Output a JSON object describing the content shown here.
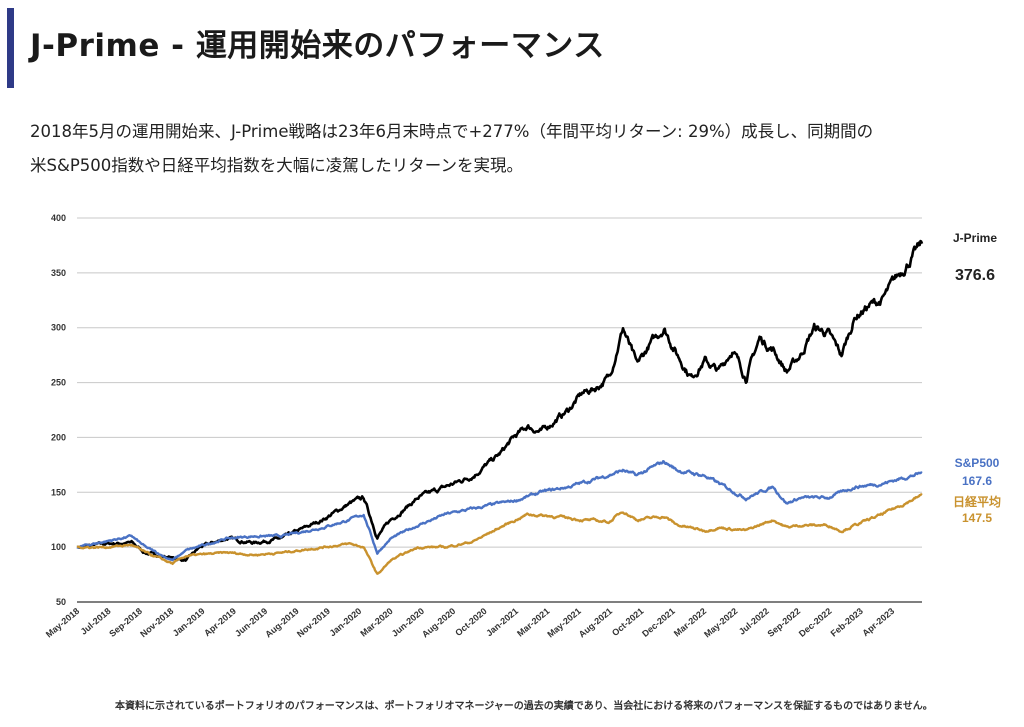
{
  "header": {
    "title": "J-Prime - 運用開始来のパフォーマンス",
    "accent_color": "#2e3a87",
    "subtitle_line1": "2018年5月の運用開始来、J-Prime戦略は23年6月末時点で+277%（年間平均リターン: 29%）成長し、同期間の",
    "subtitle_line2": "米S&P500指数や日経平均指数を大幅に凌駕したリターンを実現。"
  },
  "footer": {
    "disclaimer": "本資料に示されているポートフォリオのパフォーマンスは、ポートフォリオマネージャーの過去の実績であり、当会社における将来のパフォーマンスを保証するものではありません。"
  },
  "chart_data": {
    "type": "line",
    "title": "",
    "xlabel": "",
    "ylabel": "",
    "ylim": [
      50,
      400
    ],
    "yticks": [
      50,
      100,
      150,
      200,
      250,
      300,
      350,
      400
    ],
    "grid": "horizontal",
    "xtick_labels": [
      "May-2018",
      "Jul-2018",
      "Sep-2018",
      "Nov-2018",
      "Jan-2019",
      "Apr-2019",
      "Jun-2019",
      "Aug-2019",
      "Nov-2019",
      "Jan-2020",
      "Mar-2020",
      "Jun-2020",
      "Aug-2020",
      "Oct-2020",
      "Jan-2021",
      "Mar-2021",
      "May-2021",
      "Aug-2021",
      "Oct-2021",
      "Dec-2021",
      "Mar-2022",
      "May-2022",
      "Jul-2022",
      "Sep-2022",
      "Dec-2022",
      "Feb-2023",
      "Apr-2023"
    ],
    "legend_placement": "right (end-of-line labels)",
    "series": [
      {
        "name": "J-Prime",
        "end_value": "376.6",
        "color": "#000000",
        "points": [
          [
            "2018-05",
            100
          ],
          [
            "2018-07",
            103
          ],
          [
            "2018-09",
            104
          ],
          [
            "2018-10",
            95
          ],
          [
            "2018-12",
            90
          ],
          [
            "2019-01",
            88
          ],
          [
            "2019-02",
            100
          ],
          [
            "2019-04",
            108
          ],
          [
            "2019-06",
            104
          ],
          [
            "2019-08",
            108
          ],
          [
            "2019-11",
            125
          ],
          [
            "2020-01",
            140
          ],
          [
            "2020-02",
            145
          ],
          [
            "2020-03",
            110
          ],
          [
            "2020-04",
            125
          ],
          [
            "2020-06",
            145
          ],
          [
            "2020-08",
            155
          ],
          [
            "2020-10",
            165
          ],
          [
            "2020-12",
            185
          ],
          [
            "2021-01",
            200
          ],
          [
            "2021-02",
            210
          ],
          [
            "2021-03",
            205
          ],
          [
            "2021-04",
            215
          ],
          [
            "2021-05",
            225
          ],
          [
            "2021-06",
            240
          ],
          [
            "2021-07",
            245
          ],
          [
            "2021-08",
            255
          ],
          [
            "2021-09",
            300
          ],
          [
            "2021-10",
            265
          ],
          [
            "2021-11",
            285
          ],
          [
            "2021-12",
            300
          ],
          [
            "2022-01",
            275
          ],
          [
            "2022-02",
            255
          ],
          [
            "2022-03",
            270
          ],
          [
            "2022-04",
            260
          ],
          [
            "2022-05",
            280
          ],
          [
            "2022-06",
            255
          ],
          [
            "2022-07",
            290
          ],
          [
            "2022-08",
            280
          ],
          [
            "2022-09",
            260
          ],
          [
            "2022-10",
            275
          ],
          [
            "2022-11",
            300
          ],
          [
            "2022-12",
            295
          ],
          [
            "2023-01",
            275
          ],
          [
            "2023-02",
            310
          ],
          [
            "2023-03",
            320
          ],
          [
            "2023-04",
            325
          ],
          [
            "2023-05",
            345
          ],
          [
            "2023-06",
            376.6
          ]
        ]
      },
      {
        "name": "S&P500",
        "end_value": "167.6",
        "color": "#4a72c4",
        "points": [
          [
            "2018-05",
            100
          ],
          [
            "2018-07",
            105
          ],
          [
            "2018-09",
            110
          ],
          [
            "2018-10",
            100
          ],
          [
            "2018-12",
            88
          ],
          [
            "2019-01",
            97
          ],
          [
            "2019-04",
            108
          ],
          [
            "2019-06",
            110
          ],
          [
            "2019-08",
            110
          ],
          [
            "2019-11",
            118
          ],
          [
            "2020-01",
            125
          ],
          [
            "2020-02",
            130
          ],
          [
            "2020-03",
            95
          ],
          [
            "2020-04",
            108
          ],
          [
            "2020-06",
            120
          ],
          [
            "2020-08",
            130
          ],
          [
            "2020-10",
            135
          ],
          [
            "2020-12",
            140
          ],
          [
            "2021-01",
            142
          ],
          [
            "2021-03",
            150
          ],
          [
            "2021-05",
            155
          ],
          [
            "2021-07",
            162
          ],
          [
            "2021-09",
            170
          ],
          [
            "2021-10",
            165
          ],
          [
            "2021-12",
            178
          ],
          [
            "2022-01",
            170
          ],
          [
            "2022-03",
            165
          ],
          [
            "2022-04",
            158
          ],
          [
            "2022-06",
            145
          ],
          [
            "2022-08",
            155
          ],
          [
            "2022-09",
            140
          ],
          [
            "2022-10",
            145
          ],
          [
            "2022-12",
            145
          ],
          [
            "2023-02",
            155
          ],
          [
            "2023-04",
            158
          ],
          [
            "2023-06",
            167.6
          ]
        ]
      },
      {
        "name": "日経平均",
        "end_value": "147.5",
        "color": "#c9922e",
        "points": [
          [
            "2018-05",
            100
          ],
          [
            "2018-07",
            100
          ],
          [
            "2018-09",
            102
          ],
          [
            "2018-10",
            95
          ],
          [
            "2018-12",
            85
          ],
          [
            "2019-01",
            92
          ],
          [
            "2019-04",
            95
          ],
          [
            "2019-06",
            93
          ],
          [
            "2019-08",
            95
          ],
          [
            "2019-11",
            100
          ],
          [
            "2020-01",
            103
          ],
          [
            "2020-02",
            100
          ],
          [
            "2020-03",
            75
          ],
          [
            "2020-04",
            88
          ],
          [
            "2020-06",
            100
          ],
          [
            "2020-08",
            100
          ],
          [
            "2020-10",
            105
          ],
          [
            "2020-12",
            118
          ],
          [
            "2021-02",
            130
          ],
          [
            "2021-04",
            128
          ],
          [
            "2021-06",
            125
          ],
          [
            "2021-08",
            123
          ],
          [
            "2021-09",
            133
          ],
          [
            "2021-10",
            125
          ],
          [
            "2021-12",
            128
          ],
          [
            "2022-01",
            120
          ],
          [
            "2022-03",
            115
          ],
          [
            "2022-04",
            118
          ],
          [
            "2022-06",
            115
          ],
          [
            "2022-08",
            125
          ],
          [
            "2022-09",
            118
          ],
          [
            "2022-10",
            120
          ],
          [
            "2022-12",
            120
          ],
          [
            "2023-01",
            115
          ],
          [
            "2023-03",
            125
          ],
          [
            "2023-04",
            130
          ],
          [
            "2023-06",
            147.5
          ]
        ]
      }
    ]
  }
}
